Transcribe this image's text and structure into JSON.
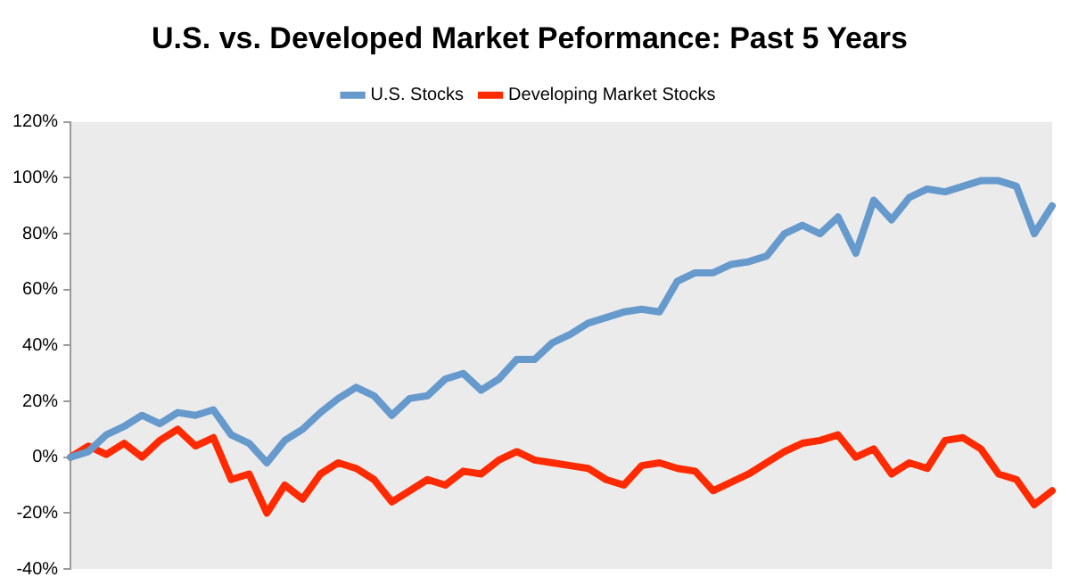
{
  "chart_data": {
    "type": "line",
    "title": "U.S. vs. Developed Market Peformance: Past 5 Years",
    "categories": [
      null,
      null,
      null,
      null,
      null,
      null,
      null,
      null,
      null,
      null,
      null,
      null,
      null,
      null,
      null,
      null,
      null,
      null,
      null,
      null,
      null,
      null,
      null,
      null,
      null,
      null,
      null,
      null,
      null,
      null,
      null,
      null,
      null,
      null,
      null,
      null,
      null,
      null,
      null,
      null,
      null,
      null,
      null,
      null,
      null,
      null,
      null,
      null,
      null,
      null,
      null,
      null,
      null,
      null,
      null,
      null
    ],
    "series": [
      {
        "name": "U.S. Stocks",
        "color": "#6699cc",
        "values": [
          0,
          2,
          8,
          11,
          15,
          12,
          16,
          15,
          17,
          8,
          5,
          -2,
          6,
          10,
          16,
          21,
          25,
          22,
          15,
          21,
          22,
          28,
          30,
          24,
          28,
          35,
          35,
          41,
          44,
          48,
          50,
          52,
          53,
          52,
          63,
          66,
          66,
          69,
          70,
          72,
          80,
          83,
          80,
          86,
          73,
          92,
          85,
          93,
          96,
          95,
          97,
          99,
          99,
          97,
          80,
          90
        ]
      },
      {
        "name": "Developing Market Stocks",
        "color": "#ff2a00",
        "values": [
          0,
          4,
          1,
          5,
          0,
          6,
          10,
          4,
          7,
          -8,
          -6,
          -20,
          -10,
          -15,
          -6,
          -2,
          -4,
          -8,
          -16,
          -12,
          -8,
          -10,
          -5,
          -6,
          -1,
          2,
          -1,
          -2,
          -3,
          -4,
          -8,
          -10,
          -3,
          -2,
          -4,
          -5,
          -12,
          -9,
          -6,
          -2,
          2,
          5,
          6,
          8,
          0,
          3,
          -6,
          -2,
          -4,
          6,
          7,
          3,
          -6,
          -8,
          -17,
          -12
        ]
      }
    ],
    "ylim": [
      -40,
      120
    ],
    "yticks": [
      {
        "value": -40,
        "label": "-40%"
      },
      {
        "value": -20,
        "label": "-20%"
      },
      {
        "value": 0,
        "label": "0%"
      },
      {
        "value": 20,
        "label": "20%"
      },
      {
        "value": 40,
        "label": "40%"
      },
      {
        "value": 60,
        "label": "60%"
      },
      {
        "value": 80,
        "label": "80%"
      },
      {
        "value": 100,
        "label": "100%"
      },
      {
        "value": 120,
        "label": "120%"
      }
    ],
    "grid": false,
    "legend": "top",
    "tick_labels": "y",
    "marker": "none",
    "line_style": "solid"
  }
}
